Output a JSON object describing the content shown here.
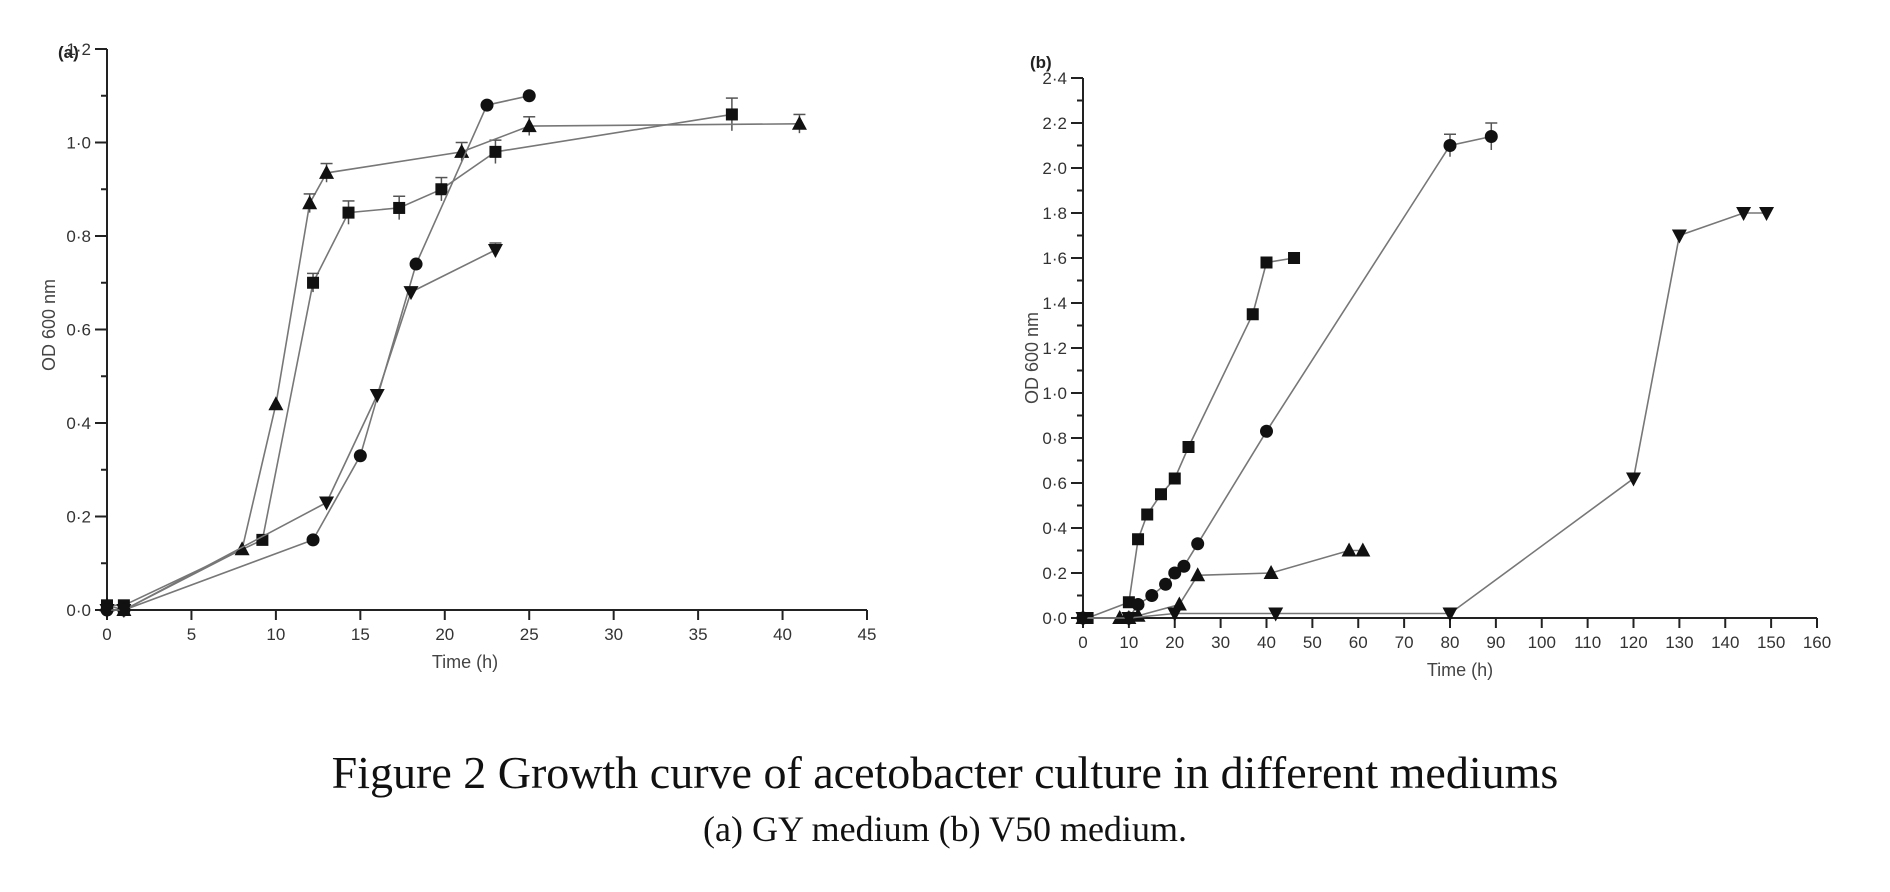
{
  "caption": {
    "title": "Figure 2  Growth curve of acetobacter culture in different mediums",
    "subtitle": "(a) GY medium (b) V50 medium."
  },
  "chart_data": [
    {
      "type": "line",
      "panel_label": "(a)",
      "xlabel": "Time (h)",
      "ylabel": "OD 600 nm",
      "xlim": [
        0,
        45
      ],
      "ylim": [
        0,
        1.2
      ],
      "xticks": [
        0,
        5,
        10,
        15,
        20,
        25,
        30,
        35,
        40,
        45
      ],
      "xtick_labels": [
        "0",
        "5",
        "10",
        "15",
        "20",
        "25",
        "30",
        "35",
        "40",
        "45"
      ],
      "yticks": [
        0,
        0.2,
        0.4,
        0.6,
        0.8,
        1.0,
        1.2
      ],
      "ytick_labels": [
        "0·0",
        "0·2",
        "0·4",
        "0·6",
        "0·8",
        "1·0",
        "1·2"
      ],
      "y_minor_step": 0.1,
      "series": [
        {
          "marker": "square",
          "x": [
            0,
            1,
            9.2,
            12.2,
            14.3,
            17.3,
            19.8,
            23,
            37
          ],
          "y": [
            0.01,
            0.01,
            0.15,
            0.7,
            0.85,
            0.86,
            0.9,
            0.98,
            1.06
          ],
          "err": [
            0,
            0,
            0,
            0.02,
            0.025,
            0.025,
            0.025,
            0.025,
            0.035
          ]
        },
        {
          "marker": "triangle-up",
          "x": [
            0,
            1,
            8,
            10,
            12,
            13,
            21,
            25,
            41
          ],
          "y": [
            0.01,
            0.0,
            0.13,
            0.44,
            0.87,
            0.935,
            0.98,
            1.035,
            1.04
          ],
          "err": [
            0,
            0,
            0,
            0,
            0.02,
            0.02,
            0.02,
            0.02,
            0.02
          ]
        },
        {
          "marker": "circle",
          "x": [
            0,
            1,
            12.2,
            15,
            18.3,
            22.5,
            25
          ],
          "y": [
            0.0,
            0.0,
            0.15,
            0.33,
            0.74,
            1.08,
            1.1
          ],
          "err": [
            0,
            0,
            0,
            0,
            0,
            0,
            0
          ]
        },
        {
          "marker": "triangle-down",
          "x": [
            0,
            1,
            13,
            16,
            18,
            23
          ],
          "y": [
            0.0,
            0.0,
            0.23,
            0.46,
            0.68,
            0.77
          ],
          "err": [
            0,
            0,
            0,
            0,
            0,
            0.015
          ]
        }
      ]
    },
    {
      "type": "line",
      "panel_label": "(b)",
      "xlabel": "Time (h)",
      "ylabel": "OD 600 nm",
      "xlim": [
        0,
        160
      ],
      "ylim": [
        0,
        2.4
      ],
      "xticks": [
        0,
        10,
        20,
        30,
        40,
        50,
        60,
        70,
        80,
        90,
        100,
        110,
        120,
        130,
        140,
        150,
        160
      ],
      "xtick_labels": [
        "0",
        "10",
        "20",
        "30",
        "40",
        "50",
        "60",
        "70",
        "80",
        "90",
        "100",
        "110",
        "120",
        "130",
        "140",
        "150",
        "160"
      ],
      "yticks": [
        0,
        0.2,
        0.4,
        0.6,
        0.8,
        1.0,
        1.2,
        1.4,
        1.6,
        1.8,
        2.0,
        2.2,
        2.4
      ],
      "ytick_labels": [
        "0·0",
        "0·2",
        "0·4",
        "0·6",
        "0·8",
        "1·0",
        "1·2",
        "1·4",
        "1·6",
        "1·8",
        "2·0",
        "2·2",
        "2·4"
      ],
      "y_minor_step": 0.1,
      "series": [
        {
          "marker": "square",
          "x": [
            0,
            1,
            10,
            12,
            14,
            17,
            20,
            23,
            37,
            40,
            46
          ],
          "y": [
            0.0,
            0.0,
            0.07,
            0.35,
            0.46,
            0.55,
            0.62,
            0.76,
            1.35,
            1.58,
            1.6
          ],
          "err": [
            0,
            0,
            0,
            0,
            0,
            0,
            0,
            0,
            0,
            0,
            0
          ]
        },
        {
          "marker": "circle",
          "x": [
            0,
            10,
            12,
            15,
            18,
            20,
            22,
            25,
            40,
            80,
            89
          ],
          "y": [
            0.0,
            0.0,
            0.06,
            0.1,
            0.15,
            0.2,
            0.23,
            0.33,
            0.83,
            2.1,
            2.14
          ],
          "err": [
            0,
            0,
            0,
            0,
            0,
            0,
            0,
            0,
            0,
            0.05,
            0.06
          ]
        },
        {
          "marker": "triangle-up",
          "x": [
            0,
            8,
            10,
            12,
            21,
            25,
            41,
            58,
            61
          ],
          "y": [
            0.0,
            0.0,
            0.0,
            0.01,
            0.06,
            0.19,
            0.2,
            0.3,
            0.3
          ],
          "err": [
            0,
            0,
            0,
            0,
            0,
            0,
            0,
            0,
            0
          ]
        },
        {
          "marker": "triangle-down",
          "x": [
            0,
            10,
            20,
            42,
            80,
            120,
            130,
            144,
            149
          ],
          "y": [
            0.0,
            0.0,
            0.02,
            0.02,
            0.02,
            0.62,
            1.7,
            1.8,
            1.8
          ],
          "err": [
            0,
            0,
            0,
            0,
            0,
            0,
            0,
            0,
            0
          ]
        }
      ]
    }
  ]
}
